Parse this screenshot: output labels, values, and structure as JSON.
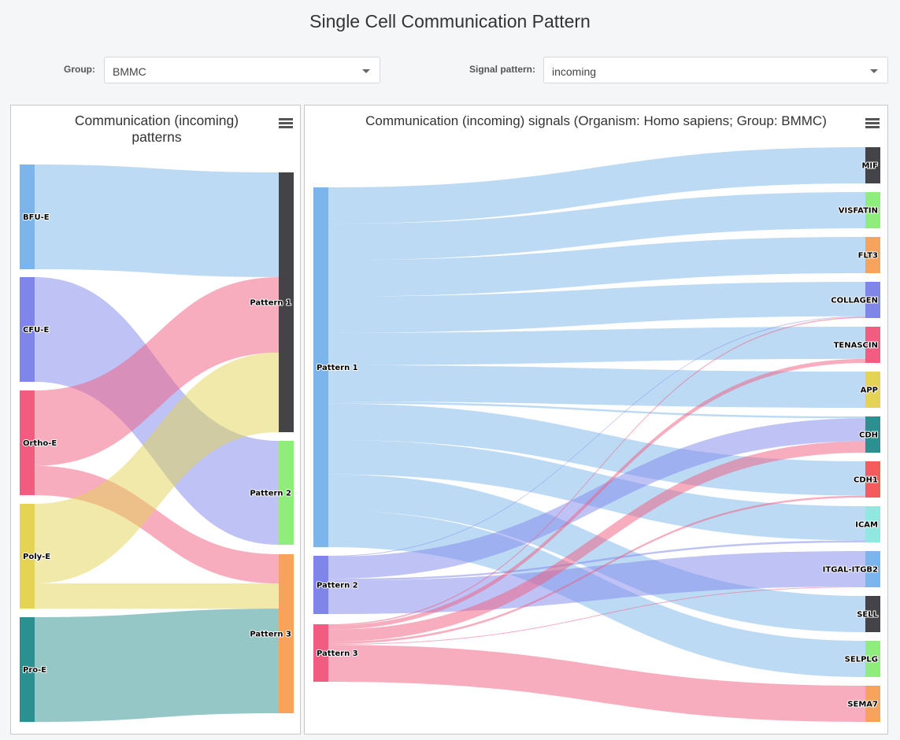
{
  "page": {
    "title": "Single Cell Communication Pattern"
  },
  "controls": {
    "group": {
      "label": "Group:",
      "value": "BMMC"
    },
    "signal_pattern": {
      "label": "Signal pattern:",
      "value": "incoming"
    }
  },
  "left_chart": {
    "title_line1": "Communication (incoming)",
    "title_line2": "patterns"
  },
  "right_chart": {
    "title": "Communication (incoming) signals (Organism: Homo sapiens; Group: BMMC)"
  },
  "colors": {
    "BFU-E": "#7cb5ec",
    "CFU-E": "#8085e9",
    "Ortho-E": "#f15c80",
    "Poly-E": "#e4d354",
    "Pro-E": "#2b908f",
    "Pattern 1": "#434348",
    "Pattern 2": "#90ed7d",
    "Pattern 3": "#f7a35c",
    "P1": "#7cb5ec",
    "P2": "#8085e9",
    "P3": "#f15c80",
    "MIF": "#434348",
    "VISFATIN": "#90ed7d",
    "FLT3": "#f7a35c",
    "COLLAGEN": "#8085e9",
    "TENASCIN": "#f15c80",
    "APP": "#e4d354",
    "CDH": "#2b908f",
    "CDH1": "#f45b5b",
    "ICAM": "#91e8e1",
    "ITGAL-ITGB2": "#7cb5ec",
    "SELL": "#434348",
    "SELPLG": "#90ed7d",
    "SEMA7": "#f7a35c"
  },
  "chart_data": [
    {
      "type": "sankey",
      "sources": [
        "BFU-E",
        "CFU-E",
        "Ortho-E",
        "Poly-E",
        "Pro-E"
      ],
      "targets": [
        "Pattern 1",
        "Pattern 2",
        "Pattern 3"
      ],
      "links": [
        {
          "from": "BFU-E",
          "to": "Pattern 1",
          "value": 1.0
        },
        {
          "from": "CFU-E",
          "to": "Pattern 2",
          "value": 1.0
        },
        {
          "from": "Ortho-E",
          "to": "Pattern 1",
          "value": 0.72
        },
        {
          "from": "Ortho-E",
          "to": "Pattern 3",
          "value": 0.28
        },
        {
          "from": "Poly-E",
          "to": "Pattern 1",
          "value": 0.76
        },
        {
          "from": "Poly-E",
          "to": "Pattern 3",
          "value": 0.24
        },
        {
          "from": "Pro-E",
          "to": "Pattern 3",
          "value": 1.0
        }
      ]
    },
    {
      "type": "sankey",
      "sources": [
        "Pattern 1",
        "Pattern 2",
        "Pattern 3"
      ],
      "source_labels": [
        "Pattern 1",
        "Pattern 2",
        "Pattern 3"
      ],
      "targets": [
        "MIF",
        "VISFATIN",
        "FLT3",
        "COLLAGEN",
        "TENASCIN",
        "APP",
        "CDH",
        "CDH1",
        "ICAM",
        "ITGAL-ITGB2",
        "SELL",
        "SELPLG",
        "SEMA7"
      ],
      "links": [
        {
          "from": "Pattern 1",
          "to": "MIF",
          "value": 0.9
        },
        {
          "from": "Pattern 1",
          "to": "VISFATIN",
          "value": 0.9
        },
        {
          "from": "Pattern 1",
          "to": "FLT3",
          "value": 0.9
        },
        {
          "from": "Pattern 1",
          "to": "COLLAGEN",
          "value": 0.9
        },
        {
          "from": "Pattern 1",
          "to": "TENASCIN",
          "value": 0.8
        },
        {
          "from": "Pattern 1",
          "to": "APP",
          "value": 0.9
        },
        {
          "from": "Pattern 1",
          "to": "CDH",
          "value": 0.05
        },
        {
          "from": "Pattern 1",
          "to": "CDH1",
          "value": 0.9
        },
        {
          "from": "Pattern 1",
          "to": "ICAM",
          "value": 0.85
        },
        {
          "from": "Pattern 1",
          "to": "SELL",
          "value": 0.9
        },
        {
          "from": "Pattern 1",
          "to": "SELPLG",
          "value": 0.9
        },
        {
          "from": "Pattern 2",
          "to": "COLLAGEN",
          "value": 0.02
        },
        {
          "from": "Pattern 2",
          "to": "CDH",
          "value": 0.6
        },
        {
          "from": "Pattern 2",
          "to": "ICAM",
          "value": 0.05
        },
        {
          "from": "Pattern 2",
          "to": "ITGAL-ITGB2",
          "value": 0.9
        },
        {
          "from": "Pattern 3",
          "to": "COLLAGEN",
          "value": 0.03
        },
        {
          "from": "Pattern 3",
          "to": "TENASCIN",
          "value": 0.1
        },
        {
          "from": "Pattern 3",
          "to": "CDH",
          "value": 0.3
        },
        {
          "from": "Pattern 3",
          "to": "CDH1",
          "value": 0.05
        },
        {
          "from": "Pattern 3",
          "to": "ITGAL-ITGB2",
          "value": 0.02
        },
        {
          "from": "Pattern 3",
          "to": "SEMA7",
          "value": 0.9
        }
      ]
    }
  ]
}
